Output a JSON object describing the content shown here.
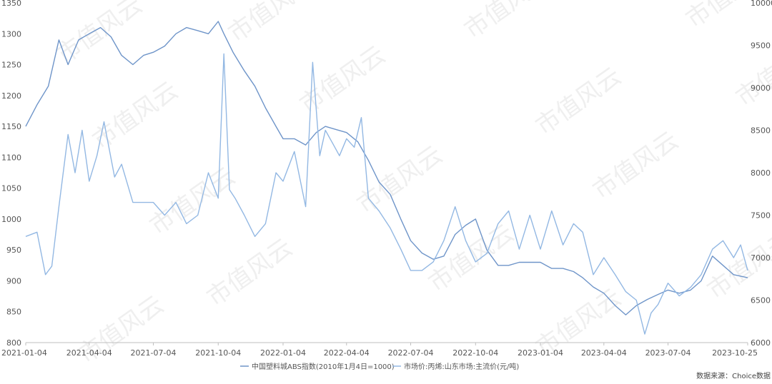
{
  "chart_data": {
    "type": "line",
    "title": "",
    "xlabel": "",
    "ylabel": "",
    "y_left_ticks": [
      "800",
      "850",
      "900",
      "950",
      "1000",
      "1050",
      "1100",
      "1150",
      "1200",
      "1250",
      "1300",
      "1350"
    ],
    "y_right_ticks": [
      "6000",
      "6500",
      "7000",
      "7500",
      "8000",
      "8500",
      "9000",
      "9500",
      "10000"
    ],
    "x_ticks": [
      "2021-01-04",
      "2021-04-04",
      "2021-07-04",
      "2021-10-04",
      "2022-01-04",
      "2022-04-04",
      "2022-07-04",
      "2022-10-04",
      "2023-01-04",
      "2023-04-04",
      "2023-07-04",
      "2023-10-25"
    ],
    "ylim_left": [
      800,
      1350
    ],
    "ylim_right": [
      6000,
      10000
    ],
    "grid": false,
    "legend_position": "bottom",
    "series": [
      {
        "name": "中国塑料城ABS指数(2010年1月4日=1000)",
        "axis": "left",
        "color": "#6f95c9",
        "x": [
          "2021-01-04",
          "2021-01-20",
          "2021-02-05",
          "2021-02-20",
          "2021-03-05",
          "2021-03-20",
          "2021-04-04",
          "2021-04-20",
          "2021-05-05",
          "2021-05-20",
          "2021-06-05",
          "2021-06-20",
          "2021-07-04",
          "2021-07-20",
          "2021-08-05",
          "2021-08-20",
          "2021-09-05",
          "2021-09-20",
          "2021-10-04",
          "2021-10-12",
          "2021-10-25",
          "2021-11-10",
          "2021-11-25",
          "2021-12-10",
          "2021-12-25",
          "2022-01-04",
          "2022-01-20",
          "2022-02-05",
          "2022-02-20",
          "2022-03-05",
          "2022-03-20",
          "2022-04-04",
          "2022-04-20",
          "2022-05-05",
          "2022-05-20",
          "2022-06-05",
          "2022-06-20",
          "2022-07-04",
          "2022-07-20",
          "2022-08-05",
          "2022-08-20",
          "2022-09-05",
          "2022-09-20",
          "2022-10-04",
          "2022-10-20",
          "2022-11-05",
          "2022-11-20",
          "2022-12-05",
          "2022-12-20",
          "2023-01-04",
          "2023-01-20",
          "2023-02-05",
          "2023-02-20",
          "2023-03-05",
          "2023-03-20",
          "2023-04-04",
          "2023-04-20",
          "2023-05-05",
          "2023-05-20",
          "2023-06-05",
          "2023-06-20",
          "2023-07-04",
          "2023-07-20",
          "2023-08-05",
          "2023-08-20",
          "2023-09-05",
          "2023-09-20",
          "2023-10-05",
          "2023-10-25"
        ],
        "values": [
          1150,
          1185,
          1215,
          1290,
          1250,
          1290,
          1300,
          1310,
          1295,
          1265,
          1250,
          1265,
          1270,
          1280,
          1300,
          1310,
          1305,
          1300,
          1320,
          1300,
          1270,
          1240,
          1215,
          1180,
          1150,
          1130,
          1130,
          1120,
          1140,
          1150,
          1145,
          1140,
          1125,
          1095,
          1060,
          1040,
          1000,
          965,
          945,
          935,
          940,
          975,
          990,
          1000,
          950,
          925,
          925,
          930,
          930,
          930,
          920,
          920,
          915,
          905,
          890,
          880,
          860,
          845,
          860,
          870,
          878,
          885,
          880,
          885,
          900,
          940,
          925,
          910,
          905
        ]
      },
      {
        "name": "市场价:丙烯:山东市场:主流价(元/吨)",
        "axis": "right",
        "color": "#93b8e3",
        "x": [
          "2021-01-04",
          "2021-01-20",
          "2021-02-01",
          "2021-02-10",
          "2021-02-20",
          "2021-03-05",
          "2021-03-15",
          "2021-03-25",
          "2021-04-04",
          "2021-04-15",
          "2021-04-25",
          "2021-05-10",
          "2021-05-20",
          "2021-06-05",
          "2021-06-20",
          "2021-07-04",
          "2021-07-20",
          "2021-08-05",
          "2021-08-20",
          "2021-09-05",
          "2021-09-20",
          "2021-10-04",
          "2021-10-12",
          "2021-10-20",
          "2021-10-28",
          "2021-11-10",
          "2021-11-25",
          "2021-12-10",
          "2021-12-25",
          "2022-01-04",
          "2022-01-20",
          "2022-02-05",
          "2022-02-15",
          "2022-02-25",
          "2022-03-05",
          "2022-03-15",
          "2022-03-25",
          "2022-04-04",
          "2022-04-15",
          "2022-04-25",
          "2022-05-05",
          "2022-05-20",
          "2022-06-05",
          "2022-06-20",
          "2022-07-04",
          "2022-07-20",
          "2022-08-05",
          "2022-08-20",
          "2022-09-05",
          "2022-09-20",
          "2022-10-04",
          "2022-10-20",
          "2022-11-05",
          "2022-11-20",
          "2022-12-05",
          "2022-12-20",
          "2023-01-04",
          "2023-01-20",
          "2023-02-05",
          "2023-02-20",
          "2023-03-05",
          "2023-03-20",
          "2023-04-04",
          "2023-04-20",
          "2023-05-05",
          "2023-05-20",
          "2023-06-01",
          "2023-06-10",
          "2023-06-20",
          "2023-07-04",
          "2023-07-20",
          "2023-08-05",
          "2023-08-20",
          "2023-09-05",
          "2023-09-20",
          "2023-10-05",
          "2023-10-15",
          "2023-10-25"
        ],
        "values": [
          7250,
          7300,
          6800,
          6900,
          7600,
          8450,
          8000,
          8500,
          7900,
          8200,
          8600,
          7950,
          8100,
          7650,
          7650,
          7650,
          7500,
          7650,
          7400,
          7500,
          8000,
          7700,
          9400,
          7800,
          7700,
          7500,
          7250,
          7400,
          8000,
          7900,
          8250,
          7600,
          9300,
          8200,
          8500,
          8350,
          8200,
          8400,
          8300,
          8650,
          7700,
          7550,
          7350,
          7100,
          6850,
          6850,
          6950,
          7200,
          7600,
          7200,
          6950,
          7050,
          7400,
          7550,
          7100,
          7500,
          7100,
          7550,
          7150,
          7400,
          7300,
          6800,
          7000,
          6800,
          6600,
          6500,
          6100,
          6350,
          6450,
          6700,
          6550,
          6650,
          6800,
          7100,
          7200,
          7000,
          7150,
          6850
        ]
      }
    ]
  },
  "source": "数据来源：Choice数据",
  "watermark_text": "市值风云"
}
